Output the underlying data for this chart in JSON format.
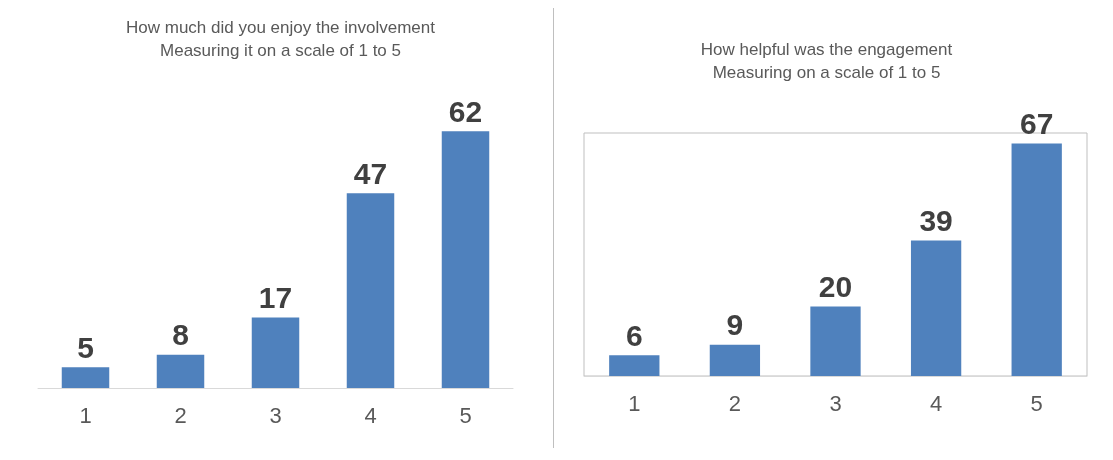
{
  "chart_data": [
    {
      "type": "bar",
      "title": "How much did you enjoy the involvement",
      "subtitle": "Measuring it on a scale of 1 to 5",
      "categories": [
        "1",
        "2",
        "3",
        "4",
        "5"
      ],
      "values": [
        5,
        8,
        17,
        47,
        62
      ],
      "color": "#4f81bd",
      "data_labels": true
    },
    {
      "type": "bar",
      "title": "How helpful was the engagement",
      "subtitle": "Measuring on a scale of 1 to 5",
      "categories": [
        "1",
        "2",
        "3",
        "4",
        "5"
      ],
      "values": [
        6,
        9,
        20,
        39,
        67
      ],
      "color": "#4f81bd",
      "data_labels": true
    }
  ]
}
